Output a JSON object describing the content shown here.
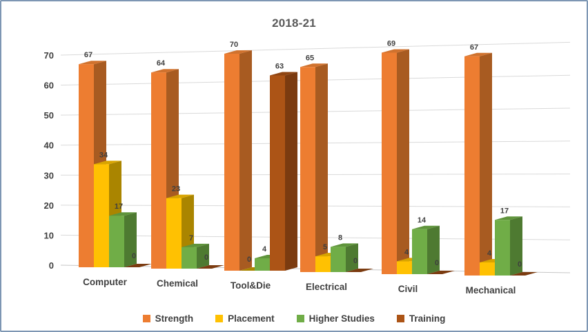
{
  "frame": {
    "border_color": "#7D96B3",
    "background_color": "#FFFFFF"
  },
  "chart_data": {
    "type": "bar",
    "variant": "3d-clustered-column",
    "title": "2018-21",
    "title_color": "#595959",
    "categories": [
      "Computer",
      "Chemical",
      "Tool&Die",
      "Electrical",
      "Civil",
      "Mechanical"
    ],
    "series": [
      {
        "name": "Strength",
        "color": "#ED7D31",
        "color_side": "#A85B21",
        "color_top": "#D0722E",
        "values": [
          67,
          64,
          70,
          65,
          69,
          67
        ]
      },
      {
        "name": "Placement",
        "color": "#FFC102",
        "color_side": "#AA8500",
        "color_top": "#D8A400",
        "values": [
          34,
          23,
          0,
          5,
          4,
          4
        ]
      },
      {
        "name": "Higher Studies",
        "color": "#70AD47",
        "color_side": "#4E7A31",
        "color_top": "#5F943B",
        "values": [
          17,
          7,
          4,
          8,
          14,
          17
        ]
      },
      {
        "name": "Training",
        "color": "#AC5416",
        "color_side": "#7B3B10",
        "color_top": "#8F4512",
        "values": [
          0,
          0,
          63,
          0,
          0,
          0
        ]
      }
    ],
    "yticks": [
      0,
      10,
      20,
      30,
      40,
      50,
      60,
      70
    ],
    "ylim": [
      0,
      70
    ],
    "grid": true,
    "grid_color": "#D9D9D9",
    "floor_line_color": "#C6C6C6",
    "axis_label_color": "#404040",
    "data_label_color": "#3F3F3F",
    "category_label_color": "#404040",
    "show_data_labels": true,
    "legend_position": "bottom"
  }
}
